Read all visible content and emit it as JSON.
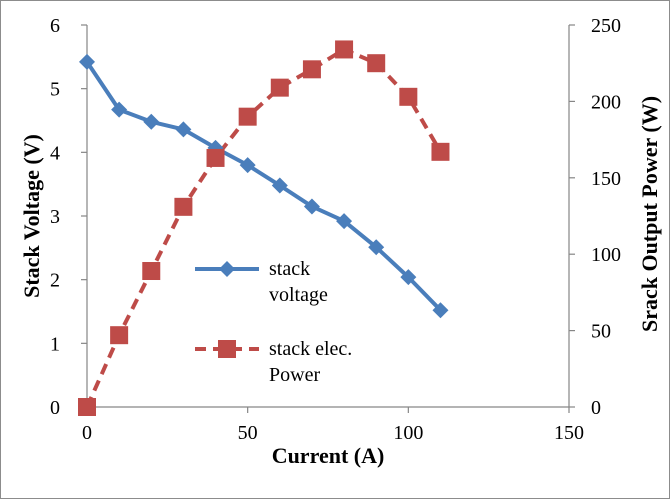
{
  "chart_data": {
    "type": "line",
    "title": "",
    "xlabel": "Current (A)",
    "ylabel": "Stack Voltage (V)",
    "y2label": "Srack Output Power (W)",
    "xlim": [
      0,
      150
    ],
    "ylim": [
      0,
      6
    ],
    "y2lim": [
      0,
      250
    ],
    "xticks": [
      "0",
      "50",
      "100",
      "150"
    ],
    "yticks": [
      "0",
      "1",
      "2",
      "3",
      "4",
      "5",
      "6"
    ],
    "y2ticks": [
      "0",
      "50",
      "100",
      "150",
      "200",
      "250"
    ],
    "grid": false,
    "legend_position": "center-left",
    "series": [
      {
        "name": "stack voltage",
        "legend_lines": [
          "stack",
          "voltage"
        ],
        "axis": "left",
        "color": "#4a7ebb",
        "marker": "diamond",
        "line_style": "solid",
        "x": [
          0,
          10,
          20,
          30,
          40,
          50,
          60,
          70,
          80,
          90,
          100,
          110
        ],
        "y": [
          5.42,
          4.67,
          4.48,
          4.36,
          4.07,
          3.8,
          3.48,
          3.15,
          2.92,
          2.51,
          2.04,
          1.52
        ]
      },
      {
        "name": "stack elec. Power",
        "legend_lines": [
          "stack elec.",
          "Power"
        ],
        "axis": "right",
        "color": "#be4b48",
        "marker": "square",
        "line_style": "dashed",
        "x": [
          0,
          10,
          20,
          30,
          40,
          50,
          60,
          70,
          80,
          90,
          100,
          110
        ],
        "y": [
          0,
          47,
          89,
          131,
          163,
          190,
          209,
          221,
          234,
          225,
          203,
          167
        ]
      }
    ]
  }
}
